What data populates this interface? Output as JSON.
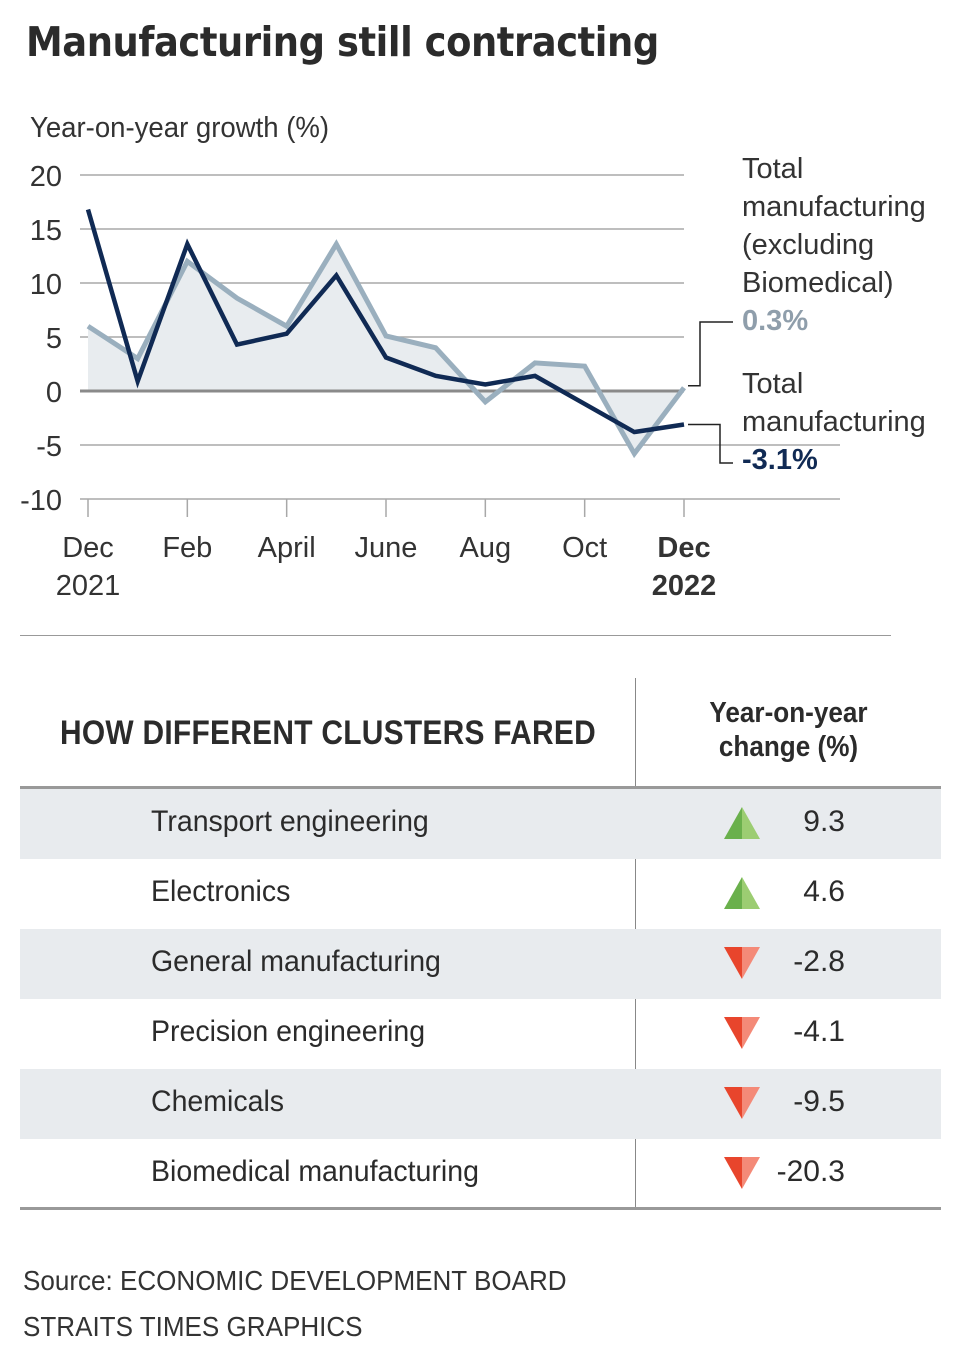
{
  "title": "Manufacturing still contracting",
  "chart_data": {
    "type": "line",
    "title": "Manufacturing still contracting",
    "ylabel": "Year-on-year growth (%)",
    "xlabel": "",
    "ylim": [
      -10,
      20
    ],
    "yticks": [
      20,
      15,
      10,
      5,
      0,
      -5,
      -10
    ],
    "x": [
      "Dec 2021",
      "Jan",
      "Feb",
      "Mar",
      "Apr",
      "May",
      "Jun",
      "Jul",
      "Aug",
      "Sep",
      "Oct",
      "Nov",
      "Dec 2022"
    ],
    "xtick_labels": [
      {
        "month_index": 0,
        "line1": "Dec",
        "line2": "2021",
        "bold": false
      },
      {
        "month_index": 2,
        "line1": "Feb",
        "line2": "",
        "bold": false
      },
      {
        "month_index": 4,
        "line1": "April",
        "line2": "",
        "bold": false
      },
      {
        "month_index": 6,
        "line1": "June",
        "line2": "",
        "bold": false
      },
      {
        "month_index": 8,
        "line1": "Aug",
        "line2": "",
        "bold": false
      },
      {
        "month_index": 10,
        "line1": "Oct",
        "line2": "",
        "bold": false
      },
      {
        "month_index": 12,
        "line1": "Dec",
        "line2": "2022",
        "bold": true
      }
    ],
    "grid": true,
    "series": [
      {
        "name": "Total manufacturing (excluding Biomedical)",
        "color": "#9aafbe",
        "area_fill": "#e8ecef",
        "values": [
          6.0,
          3.0,
          12.0,
          8.6,
          6.0,
          13.6,
          5.1,
          4.0,
          -1.0,
          2.6,
          2.3,
          -5.8,
          0.3
        ],
        "end_label": "0.3%"
      },
      {
        "name": "Total manufacturing",
        "color": "#102a54",
        "values": [
          16.8,
          0.9,
          13.6,
          4.3,
          5.3,
          10.7,
          3.1,
          1.4,
          0.6,
          1.4,
          -1.2,
          -3.8,
          -3.1
        ],
        "end_label": "-3.1%"
      }
    ]
  },
  "annotations": {
    "excl_lines": [
      "Total",
      "manufacturing",
      "(excluding",
      "Biomedical)"
    ],
    "excl_value": "0.3%",
    "total_lines": [
      "Total",
      "manufacturing"
    ],
    "total_value": "-3.1%"
  },
  "table": {
    "heading": "HOW DIFFERENT CLUSTERS FARED",
    "col_header_line1": "Year-on-year",
    "col_header_line2": "change (%)",
    "up_color": "#6ab04c",
    "down_color": "#e8452c",
    "rows": [
      {
        "name": "Transport engineering",
        "direction": "up",
        "value": "9.3"
      },
      {
        "name": "Electronics",
        "direction": "up",
        "value": "4.6"
      },
      {
        "name": "General manufacturing",
        "direction": "down",
        "value": "-2.8"
      },
      {
        "name": "Precision engineering",
        "direction": "down",
        "value": "-4.1"
      },
      {
        "name": "Chemicals",
        "direction": "down",
        "value": "-9.5"
      },
      {
        "name": "Biomedical manufacturing",
        "direction": "down",
        "value": "-20.3"
      }
    ]
  },
  "footer": {
    "source": "Source: ECONOMIC DEVELOPMENT BOARD",
    "credit": "STRAITS TIMES GRAPHICS"
  }
}
